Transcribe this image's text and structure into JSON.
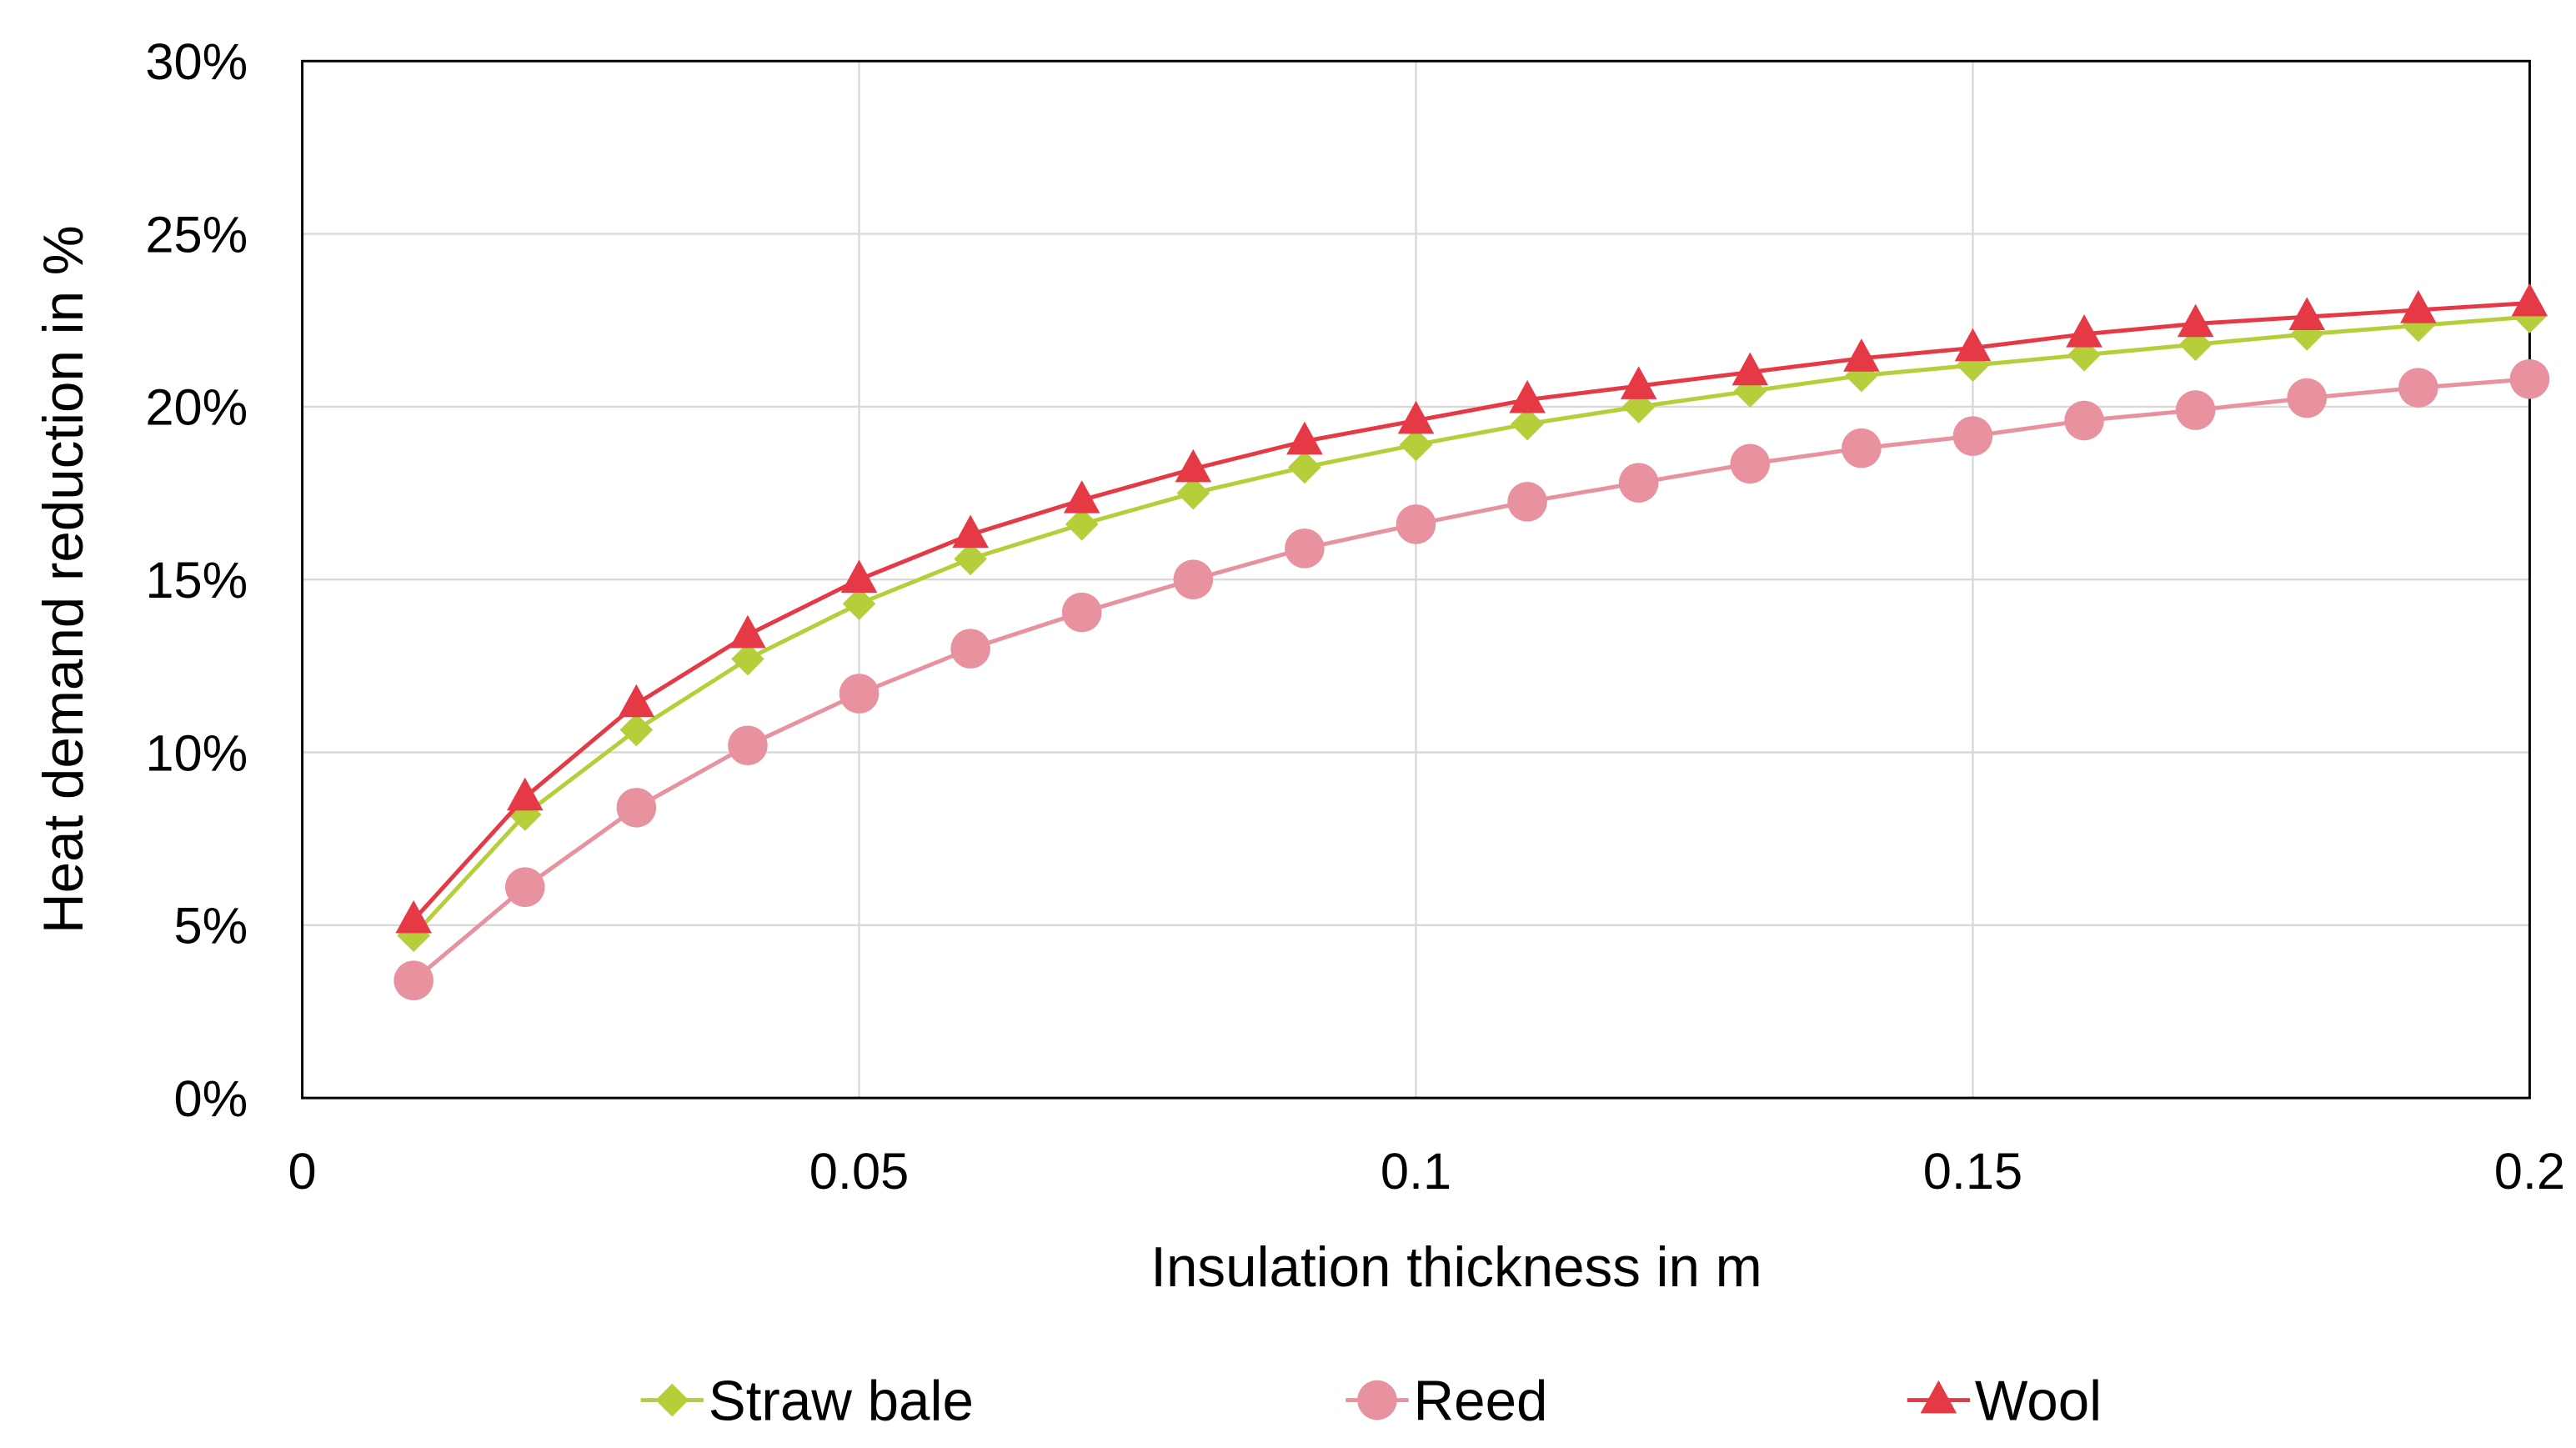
{
  "chart_data": {
    "type": "line",
    "title": "",
    "xlabel": "Insulation thickness in m",
    "ylabel": "Heat demand reduction in %",
    "xlim": [
      0,
      0.2
    ],
    "ylim": [
      0,
      30
    ],
    "grid": true,
    "legend_position": "bottom",
    "x_ticks": [
      "0",
      "0.05",
      "0.1",
      "0.15",
      "0.2"
    ],
    "y_ticks": [
      "0%",
      "5%",
      "10%",
      "15%",
      "20%",
      "25%",
      "30%"
    ],
    "x": [
      0.01,
      0.02,
      0.03,
      0.04,
      0.05,
      0.06,
      0.07,
      0.08,
      0.09,
      0.1,
      0.11,
      0.12,
      0.13,
      0.14,
      0.15,
      0.16,
      0.17,
      0.18,
      0.19,
      0.2
    ],
    "series": [
      {
        "name": "Straw bale",
        "marker": "diamond",
        "color": "#B5CE3A",
        "values": [
          4.7,
          8.2,
          10.65,
          12.7,
          14.3,
          15.6,
          16.6,
          17.5,
          18.25,
          18.9,
          19.5,
          20.0,
          20.45,
          20.9,
          21.2,
          21.5,
          21.8,
          22.1,
          22.35,
          22.6
        ]
      },
      {
        "name": "Reed",
        "marker": "circle",
        "color": "#E8919F",
        "values": [
          3.4,
          6.1,
          8.4,
          10.2,
          11.7,
          13.0,
          14.05,
          15.0,
          15.9,
          16.6,
          17.25,
          17.8,
          18.35,
          18.8,
          19.15,
          19.6,
          19.9,
          20.25,
          20.55,
          20.8
        ]
      },
      {
        "name": "Wool",
        "marker": "triangle",
        "color": "#E63946",
        "values": [
          5.15,
          8.7,
          11.4,
          13.4,
          15.0,
          16.3,
          17.3,
          18.2,
          19.0,
          19.6,
          20.2,
          20.6,
          21.0,
          21.4,
          21.7,
          22.1,
          22.4,
          22.6,
          22.8,
          23.0
        ]
      }
    ]
  }
}
